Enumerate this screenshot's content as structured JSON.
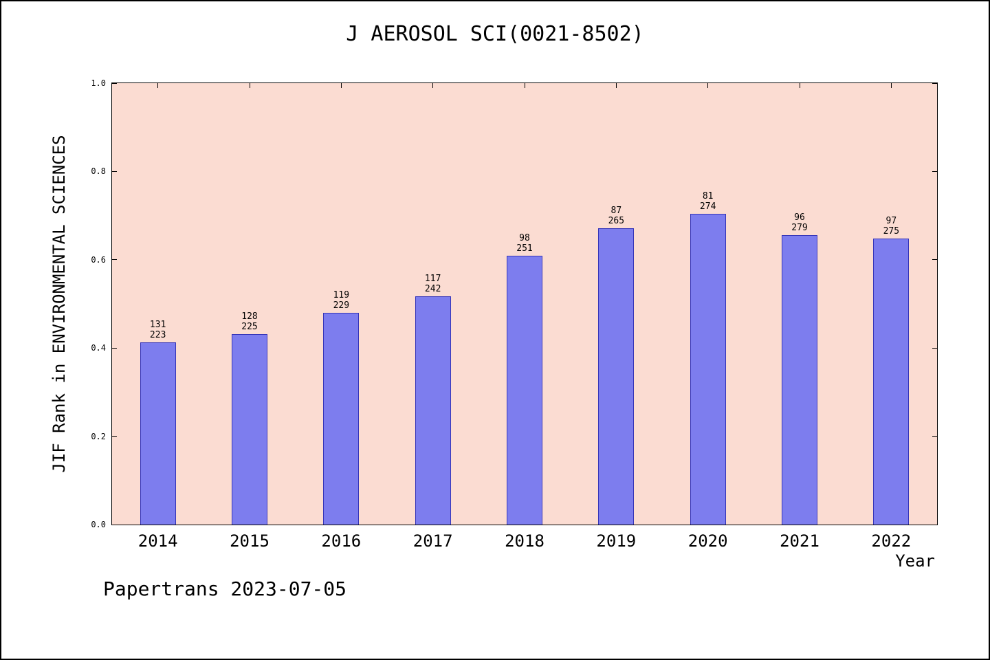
{
  "chart_data": {
    "type": "bar",
    "title": "J AEROSOL SCI(0021-8502)",
    "xlabel": "Year",
    "ylabel": "JIF Rank in ENVIRONMENTAL SCIENCES",
    "categories": [
      "2014",
      "2015",
      "2016",
      "2017",
      "2018",
      "2019",
      "2020",
      "2021",
      "2022"
    ],
    "values": [
      0.4126,
      0.4311,
      0.4803,
      0.5165,
      0.6096,
      0.6717,
      0.7044,
      0.6559,
      0.6473
    ],
    "ranks": [
      "131",
      "128",
      "119",
      "117",
      "98",
      "87",
      "81",
      "96",
      "97"
    ],
    "totals": [
      "223",
      "225",
      "229",
      "242",
      "251",
      "265",
      "274",
      "279",
      "275"
    ],
    "ylim": [
      0,
      1
    ],
    "yticks": [
      "0.0",
      "0.2",
      "0.4",
      "0.6",
      "0.8",
      "1.0"
    ],
    "grid": false,
    "legend": "none",
    "colors": {
      "bar_fill": "#7d7dee",
      "bar_border": "#3434b8",
      "plot_bg": "#fbdcd2",
      "axis": "#000000"
    }
  },
  "footer": {
    "text": "Papertrans 2023-07-05"
  }
}
